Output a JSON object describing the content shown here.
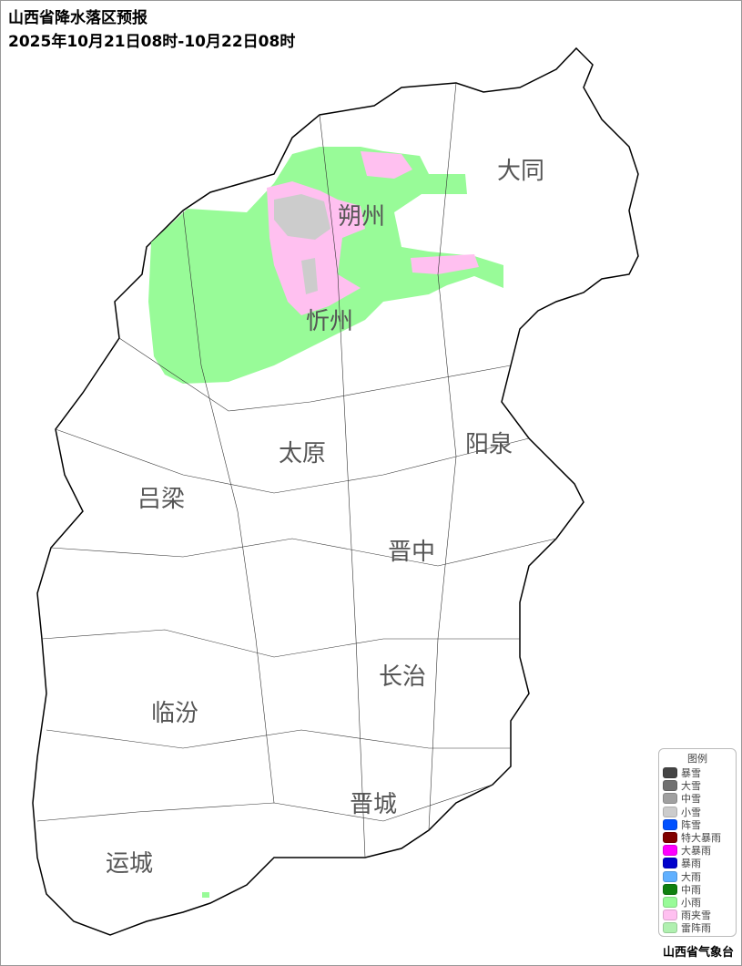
{
  "title": {
    "line1": "山西省降水落区预报",
    "line2": "2025年10月21日08时-10月22日08时"
  },
  "cities": [
    {
      "name": "大同"
    },
    {
      "name": "朔州"
    },
    {
      "name": "忻州"
    },
    {
      "name": "太原"
    },
    {
      "name": "阳泉"
    },
    {
      "name": "吕梁"
    },
    {
      "name": "晋中"
    },
    {
      "name": "长治"
    },
    {
      "name": "临汾"
    },
    {
      "name": "晋城"
    },
    {
      "name": "运城"
    }
  ],
  "legend": {
    "title": "图例",
    "items": [
      {
        "label": "暴雪",
        "color": "#444444"
      },
      {
        "label": "大雪",
        "color": "#707070"
      },
      {
        "label": "中雪",
        "color": "#a0a0a0"
      },
      {
        "label": "小雪",
        "color": "#cccccc"
      },
      {
        "label": "阵雪",
        "color": "#0050ff"
      },
      {
        "label": "特大暴雨",
        "color": "#800000"
      },
      {
        "label": "大暴雨",
        "color": "#ff00ff"
      },
      {
        "label": "暴雨",
        "color": "#0000cc"
      },
      {
        "label": "大雨",
        "color": "#60b0ff"
      },
      {
        "label": "中雨",
        "color": "#108010"
      },
      {
        "label": "小雨",
        "color": "#98fb98"
      },
      {
        "label": "雨夹雪",
        "color": "#ffc0f0"
      },
      {
        "label": "雷阵雨",
        "color": "#b0f0b0"
      }
    ]
  },
  "precip_areas": [
    {
      "type": "小雨",
      "color": "#98fb98"
    },
    {
      "type": "雨夹雪",
      "color": "#ffc0f0"
    },
    {
      "type": "小雪",
      "color": "#cccccc"
    }
  ],
  "footer": "山西省气象台"
}
